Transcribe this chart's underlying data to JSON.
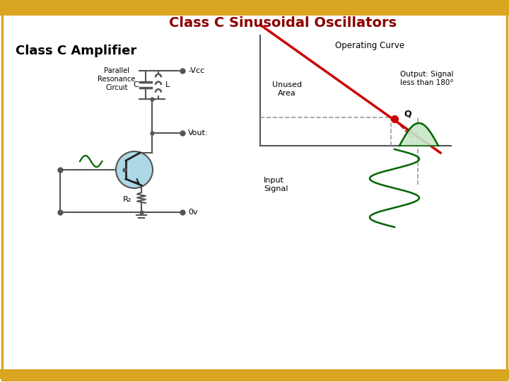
{
  "title": "Class C Sinusoidal Oscillators",
  "title_color": "#8B0000",
  "title_fontsize": 14,
  "subtitle": "Class C Amplifier",
  "subtitle_fontsize": 13,
  "bg_color": "#FFFFFF",
  "border_color": "#DAA520",
  "transistor_fill": "#ADD8E6",
  "green_signal_color": "#006400",
  "red_line_color": "#CC0000",
  "red_dot_color": "#CC0000",
  "output_fill": "#90EE90",
  "wire_color": "#555555",
  "unused_area_text": "Unused\nArea",
  "operating_curve_text": "Operating Curve",
  "output_signal_text": "Output: Signal\nless than 180°",
  "input_signal_text": "Input\nSignal",
  "q_label": "Q",
  "vcc_label": "-Vcc",
  "vout_label": "Vout:",
  "ov_label": "0v",
  "c_label": "C",
  "l_label": "L",
  "rb_label": "R₂",
  "parallel_text": "Parallel\nResonance\nCircuit"
}
